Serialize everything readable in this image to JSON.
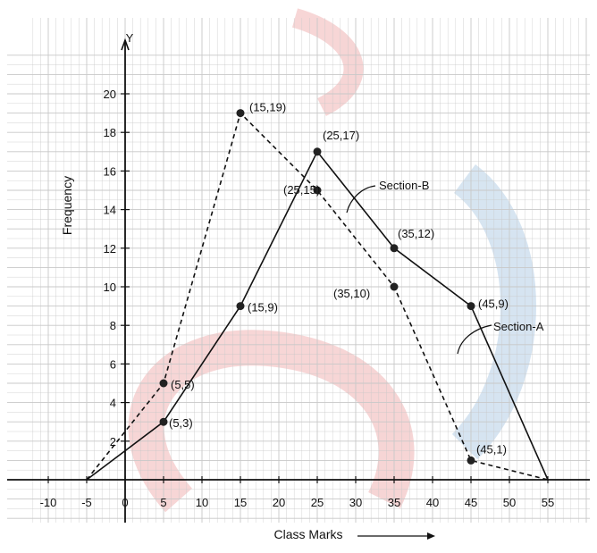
{
  "chart_data": {
    "type": "line",
    "title": "",
    "xlabel": "Class Marks",
    "ylabel": "Frequency",
    "x_axis_letter": "",
    "y_axis_letter": "Y",
    "xlim": [
      -12,
      60
    ],
    "ylim": [
      0,
      21
    ],
    "xticks": [
      -10,
      -5,
      0,
      5,
      10,
      15,
      20,
      25,
      30,
      35,
      40,
      45,
      50,
      55
    ],
    "xtick_labels": [
      "-10",
      "-5",
      "0",
      "5",
      "10",
      "15",
      "20",
      "25",
      "30",
      "35",
      "40",
      "45",
      "50",
      "55"
    ],
    "yticks": [
      2,
      4,
      6,
      8,
      10,
      12,
      14,
      16,
      18,
      20
    ],
    "ytick_labels": [
      "2",
      "4",
      "6",
      "8",
      "10",
      "12",
      "14",
      "16",
      "18",
      "20"
    ],
    "grid": true,
    "series": [
      {
        "name": "Section-A",
        "line_style": "solid",
        "x": [
          -5,
          5,
          15,
          25,
          35,
          45,
          55
        ],
        "y": [
          0,
          3,
          9,
          17,
          12,
          9,
          0
        ],
        "point_labels": [
          "",
          "(5,3)",
          "(15,9)",
          "(25,17)",
          "(35,12)",
          "(45,9)",
          ""
        ]
      },
      {
        "name": "Section-B",
        "line_style": "dashed",
        "x": [
          -5,
          5,
          15,
          25,
          35,
          45,
          55
        ],
        "y": [
          0,
          5,
          19,
          15,
          10,
          1,
          0
        ],
        "point_labels": [
          "",
          "(5,5)",
          "(15,19)",
          "(25,15)",
          "(35,10)",
          "(45,1)",
          ""
        ]
      }
    ],
    "colors": {
      "line": "#111111",
      "grid": "#c8c8c8",
      "watermark": "#e88a8a"
    }
  }
}
